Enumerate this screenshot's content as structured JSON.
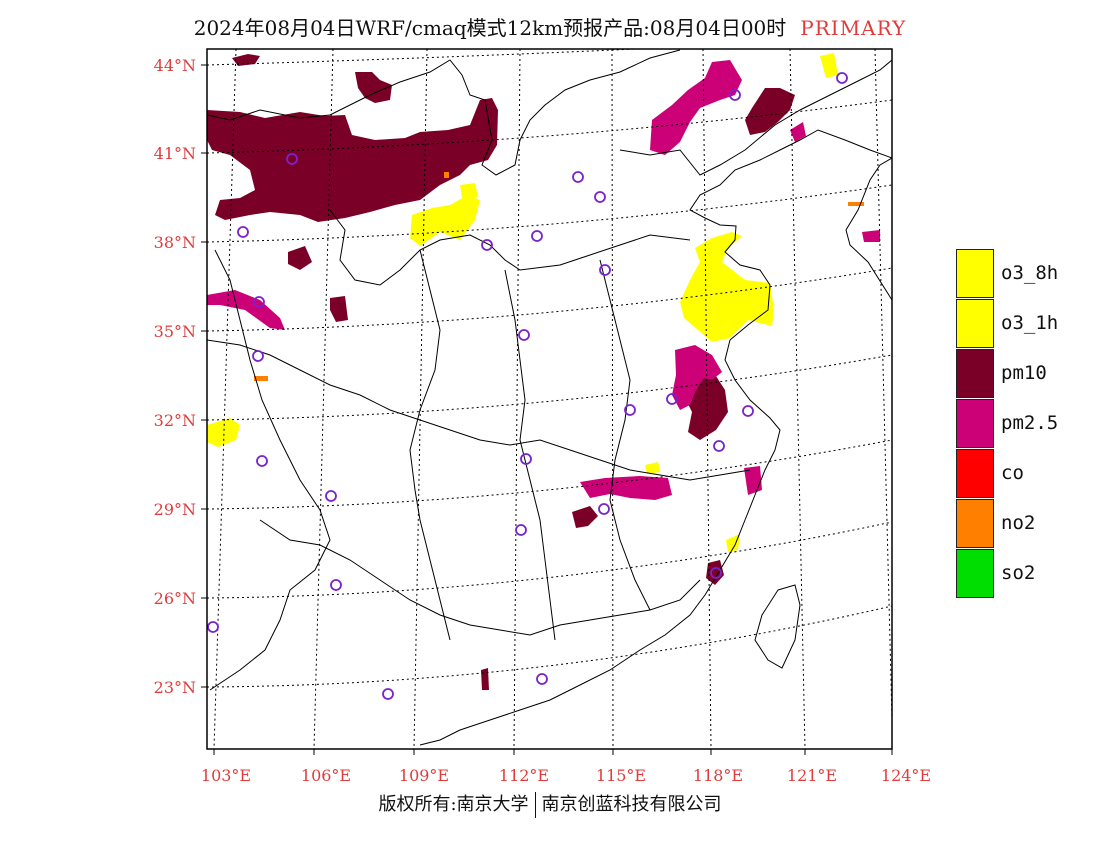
{
  "title": {
    "main": "2024年08月04日WRF/cmaq模式12km预报产品:08月04日00时",
    "tag": "PRIMARY"
  },
  "lat_labels": [
    "44°N",
    "41°N",
    "38°N",
    "35°N",
    "32°N",
    "29°N",
    "26°N",
    "23°N"
  ],
  "lon_labels": [
    "103°E",
    "106°E",
    "109°E",
    "112°E",
    "115°E",
    "118°E",
    "121°E",
    "124°E"
  ],
  "legend": [
    {
      "label": "o3_8h",
      "color": "#ffff00"
    },
    {
      "label": "o3_1h",
      "color": "#ffff00"
    },
    {
      "label": "pm10",
      "color": "#7a0028"
    },
    {
      "label": "pm2.5",
      "color": "#cc0077"
    },
    {
      "label": "co",
      "color": "#ff0000"
    },
    {
      "label": "no2",
      "color": "#ff7f00"
    },
    {
      "label": "so2",
      "color": "#00dd00"
    }
  ],
  "copyright": {
    "left": "版权所有:南京大学",
    "right": "南京创蓝科技有限公司"
  },
  "colors": {
    "axis_label": "#e03c3c",
    "station_marker": "#7a22cc",
    "boundary": "#000000"
  }
}
